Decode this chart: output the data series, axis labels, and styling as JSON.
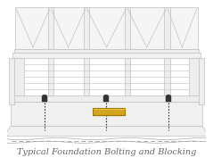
{
  "title": "Typical Foundation Bolting and Blocking",
  "title_fontsize": 7.0,
  "title_color": "#666666",
  "bg_color": "#ffffff",
  "lc": "#c0c0c0",
  "mc": "#aaaaaa",
  "dc": "#888888",
  "gold_fill": "#d4a520",
  "gold_edge": "#a07800",
  "bolt_color": "#333333",
  "figure_width": 2.39,
  "figure_height": 1.86,
  "dpi": 100
}
